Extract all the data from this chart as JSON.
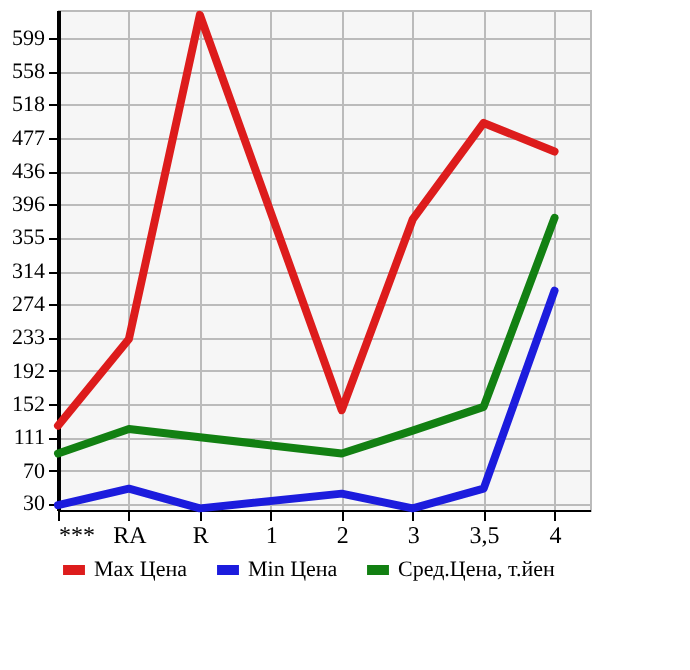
{
  "chart_data": {
    "type": "line",
    "categories": [
      "***",
      "RA",
      "R",
      "1",
      "2",
      "3",
      "3,5",
      "4"
    ],
    "series": [
      {
        "name": "Max Цена",
        "color": "#dd1c1c",
        "values": [
          125,
          231,
          627,
          null,
          144,
          377,
          495,
          460
        ]
      },
      {
        "name": "Min Цена",
        "color": "#1c1cdd",
        "values": [
          28,
          48,
          24,
          null,
          42,
          24,
          48,
          290
        ]
      },
      {
        "name": "Сред.Цена, т.йен",
        "color": "#128012",
        "values": [
          91,
          121,
          111,
          null,
          91,
          119,
          148,
          379
        ]
      }
    ],
    "ylim": [
      22,
      633
    ],
    "yticks": [
      30,
      70,
      111,
      152,
      192,
      233,
      274,
      314,
      355,
      396,
      436,
      477,
      518,
      558,
      599
    ],
    "grid": true,
    "legend": "bottom",
    "marker": "none",
    "line_style": "solid"
  }
}
